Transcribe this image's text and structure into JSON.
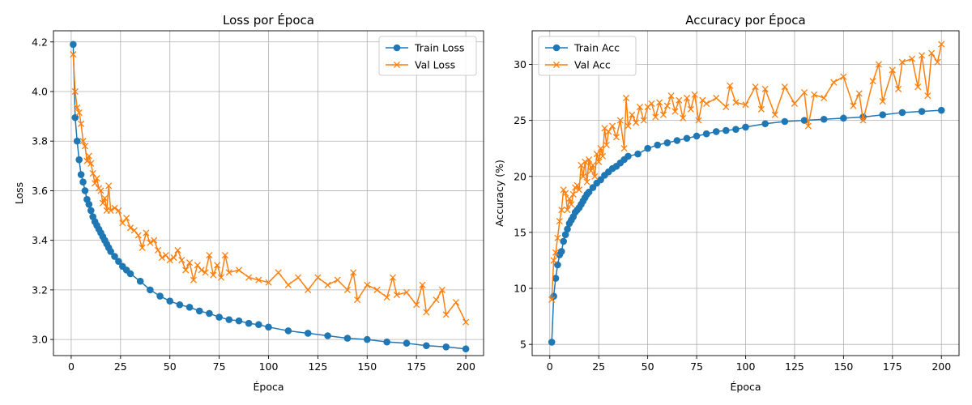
{
  "chart_data": [
    {
      "type": "line",
      "title": "Loss por Época",
      "xlabel": "Época",
      "ylabel": "Loss",
      "xlim": [
        -9,
        209
      ],
      "ylim": [
        2.935,
        4.245
      ],
      "xticks": [
        0,
        25,
        50,
        75,
        100,
        125,
        150,
        175,
        200
      ],
      "yticks": [
        3.0,
        3.2,
        3.4,
        3.6,
        3.8,
        4.0,
        4.2
      ],
      "ytick_decimals": 1,
      "grid": true,
      "legend_position": "top-right",
      "series": [
        {
          "name": "Train Loss",
          "marker": "circle",
          "color": "#1f77b4",
          "x": [
            1,
            2,
            3,
            4,
            5,
            6,
            7,
            8,
            9,
            10,
            11,
            12,
            13,
            14,
            15,
            16,
            17,
            18,
            19,
            20,
            22,
            24,
            26,
            28,
            30,
            35,
            40,
            45,
            50,
            55,
            60,
            65,
            70,
            75,
            80,
            85,
            90,
            95,
            100,
            110,
            120,
            130,
            140,
            150,
            160,
            170,
            180,
            190,
            200
          ],
          "values": [
            4.19,
            3.895,
            3.8,
            3.725,
            3.665,
            3.635,
            3.6,
            3.565,
            3.545,
            3.52,
            3.495,
            3.475,
            3.46,
            3.445,
            3.43,
            3.415,
            3.4,
            3.385,
            3.37,
            3.355,
            3.335,
            3.315,
            3.295,
            3.28,
            3.265,
            3.235,
            3.2,
            3.175,
            3.155,
            3.14,
            3.13,
            3.115,
            3.105,
            3.09,
            3.08,
            3.075,
            3.065,
            3.06,
            3.05,
            3.035,
            3.025,
            3.015,
            3.005,
            3.0,
            2.99,
            2.985,
            2.975,
            2.97,
            2.962
          ]
        },
        {
          "name": "Val Loss",
          "marker": "x",
          "color": "#ff7f0e",
          "x": [
            1,
            2,
            3,
            4,
            5,
            6,
            7,
            8,
            9,
            10,
            11,
            12,
            13,
            14,
            15,
            16,
            17,
            18,
            19,
            20,
            22,
            24,
            26,
            28,
            30,
            32,
            34,
            36,
            38,
            40,
            42,
            44,
            46,
            48,
            50,
            52,
            54,
            56,
            58,
            60,
            62,
            64,
            66,
            68,
            70,
            72,
            74,
            76,
            78,
            80,
            85,
            90,
            95,
            100,
            105,
            110,
            115,
            120,
            125,
            130,
            135,
            140,
            143,
            145,
            150,
            155,
            160,
            163,
            165,
            170,
            175,
            178,
            180,
            185,
            188,
            190,
            195,
            200
          ],
          "values": [
            4.15,
            4.0,
            3.935,
            3.915,
            3.87,
            3.8,
            3.78,
            3.72,
            3.74,
            3.71,
            3.67,
            3.63,
            3.65,
            3.61,
            3.6,
            3.55,
            3.57,
            3.52,
            3.62,
            3.52,
            3.53,
            3.52,
            3.47,
            3.49,
            3.45,
            3.44,
            3.42,
            3.37,
            3.43,
            3.39,
            3.4,
            3.36,
            3.33,
            3.34,
            3.32,
            3.33,
            3.36,
            3.32,
            3.28,
            3.31,
            3.24,
            3.3,
            3.28,
            3.27,
            3.34,
            3.26,
            3.3,
            3.25,
            3.34,
            3.27,
            3.28,
            3.25,
            3.24,
            3.23,
            3.27,
            3.22,
            3.25,
            3.2,
            3.25,
            3.22,
            3.24,
            3.2,
            3.27,
            3.16,
            3.22,
            3.2,
            3.17,
            3.25,
            3.18,
            3.19,
            3.14,
            3.22,
            3.11,
            3.16,
            3.2,
            3.1,
            3.15,
            3.07
          ]
        }
      ]
    },
    {
      "type": "line",
      "title": "Accuracy por Época",
      "xlabel": "Época",
      "ylabel": "Accuracy (%)",
      "xlim": [
        -9,
        209
      ],
      "ylim": [
        4.0,
        33.0
      ],
      "xticks": [
        0,
        25,
        50,
        75,
        100,
        125,
        150,
        175,
        200
      ],
      "yticks": [
        5,
        10,
        15,
        20,
        25,
        30
      ],
      "ytick_decimals": 0,
      "grid": true,
      "legend_position": "top-left",
      "series": [
        {
          "name": "Train Acc",
          "marker": "circle",
          "color": "#1f77b4",
          "x": [
            1,
            2,
            3,
            4,
            5,
            6,
            7,
            8,
            9,
            10,
            11,
            12,
            13,
            14,
            15,
            16,
            17,
            18,
            19,
            20,
            22,
            24,
            26,
            28,
            30,
            32,
            34,
            36,
            38,
            40,
            45,
            50,
            55,
            60,
            65,
            70,
            75,
            80,
            85,
            90,
            95,
            100,
            110,
            120,
            130,
            140,
            150,
            160,
            170,
            180,
            190,
            200
          ],
          "values": [
            5.2,
            9.3,
            10.9,
            12.1,
            13.0,
            13.3,
            14.2,
            14.8,
            15.3,
            15.8,
            16.1,
            16.4,
            16.8,
            17.0,
            17.2,
            17.5,
            17.8,
            18.1,
            18.4,
            18.6,
            19.0,
            19.4,
            19.7,
            20.1,
            20.4,
            20.7,
            20.9,
            21.2,
            21.5,
            21.8,
            22.0,
            22.5,
            22.8,
            23.0,
            23.2,
            23.4,
            23.6,
            23.8,
            24.0,
            24.1,
            24.2,
            24.4,
            24.7,
            24.9,
            25.0,
            25.1,
            25.2,
            25.3,
            25.5,
            25.7,
            25.8,
            25.9
          ]
        },
        {
          "name": "Val Acc",
          "marker": "x",
          "color": "#ff7f0e",
          "x": [
            1,
            2,
            3,
            4,
            5,
            6,
            7,
            8,
            9,
            10,
            11,
            12,
            13,
            14,
            15,
            16,
            17,
            18,
            19,
            20,
            21,
            22,
            23,
            24,
            25,
            26,
            27,
            28,
            29,
            30,
            32,
            34,
            36,
            38,
            39,
            40,
            42,
            44,
            46,
            48,
            50,
            52,
            54,
            56,
            58,
            60,
            62,
            64,
            66,
            68,
            70,
            72,
            74,
            76,
            78,
            80,
            85,
            90,
            92,
            95,
            100,
            105,
            108,
            110,
            115,
            120,
            125,
            130,
            132,
            135,
            140,
            145,
            150,
            155,
            158,
            160,
            165,
            168,
            170,
            175,
            178,
            180,
            185,
            188,
            190,
            193,
            195,
            198,
            200
          ],
          "values": [
            9.0,
            12.5,
            13.2,
            14.5,
            16.0,
            17.0,
            18.8,
            18.5,
            17.0,
            18.0,
            17.5,
            18.4,
            19.0,
            19.2,
            18.8,
            21.0,
            20.0,
            21.3,
            19.5,
            21.5,
            20.5,
            21.0,
            20.0,
            22.0,
            21.3,
            22.5,
            21.8,
            24.3,
            22.8,
            24.0,
            24.5,
            23.5,
            25.0,
            22.5,
            27.0,
            24.5,
            25.5,
            24.8,
            26.2,
            25.0,
            26.2,
            26.5,
            25.3,
            26.6,
            25.5,
            26.3,
            27.2,
            25.8,
            26.8,
            25.2,
            27.0,
            26.0,
            27.3,
            25.0,
            26.8,
            26.5,
            27.0,
            26.2,
            28.1,
            26.6,
            26.4,
            28.0,
            26.0,
            27.8,
            25.5,
            28.0,
            26.5,
            27.5,
            24.5,
            27.3,
            27.0,
            28.4,
            28.9,
            26.3,
            27.4,
            25.0,
            28.5,
            30.0,
            26.7,
            29.5,
            27.8,
            30.2,
            30.5,
            28.0,
            30.8,
            27.2,
            31.0,
            30.2,
            31.8
          ]
        }
      ]
    }
  ]
}
